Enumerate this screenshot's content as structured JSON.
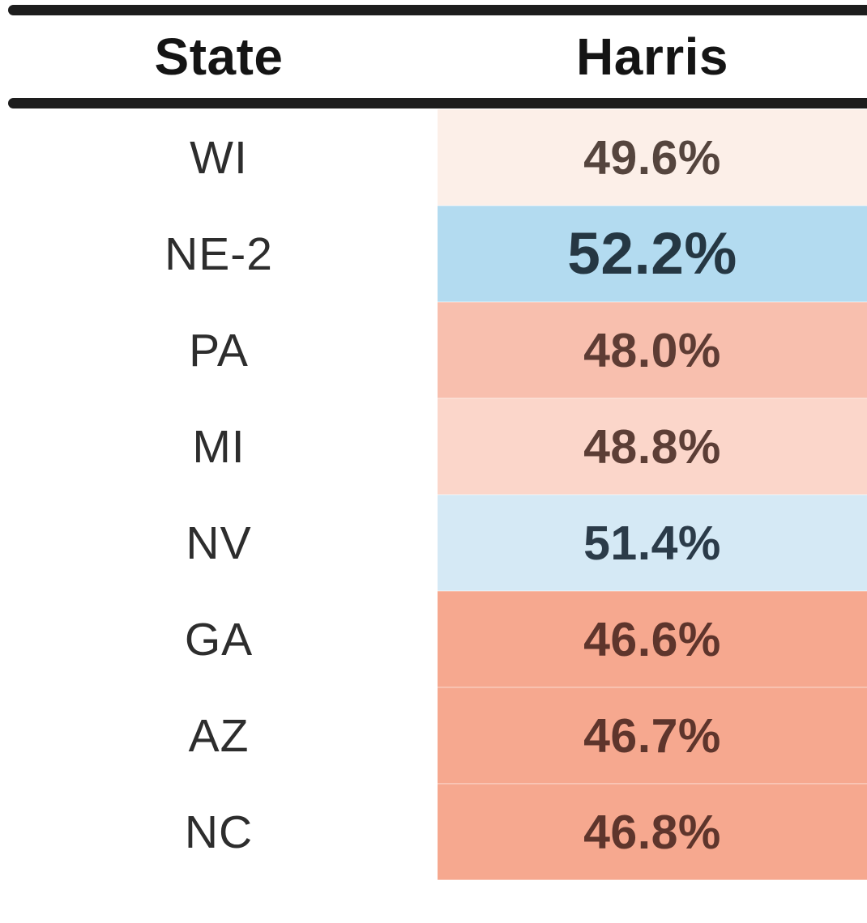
{
  "table": {
    "columns": [
      {
        "label": "State"
      },
      {
        "label": "Harris"
      }
    ],
    "rows": [
      {
        "state": "WI",
        "harris": "49.6%",
        "bg": "#fcefe8",
        "fg": "#55453e",
        "emphasis": false
      },
      {
        "state": "NE-2",
        "harris": "52.2%",
        "bg": "#b3dbf0",
        "fg": "#253743",
        "emphasis": true
      },
      {
        "state": "PA",
        "harris": "48.0%",
        "bg": "#f8bfae",
        "fg": "#5e3c34",
        "emphasis": false
      },
      {
        "state": "MI",
        "harris": "48.8%",
        "bg": "#fbd6ca",
        "fg": "#5c3e36",
        "emphasis": false
      },
      {
        "state": "NV",
        "harris": "51.4%",
        "bg": "#d5e9f5",
        "fg": "#2b3b49",
        "emphasis": false
      },
      {
        "state": "GA",
        "harris": "46.6%",
        "bg": "#f6a88f",
        "fg": "#5e352c",
        "emphasis": false
      },
      {
        "state": "AZ",
        "harris": "46.7%",
        "bg": "#f6a88f",
        "fg": "#5e352c",
        "emphasis": false
      },
      {
        "state": "NC",
        "harris": "46.8%",
        "bg": "#f6a88f",
        "fg": "#5e352c",
        "emphasis": false
      }
    ],
    "colors": {
      "rule": "#1d1d1d",
      "header_text": "#141414",
      "state_text": "#2d2d2d",
      "dem_strong": "#b3dbf0",
      "dem_light": "#d5e9f5",
      "rep_strong": "#f6a88f",
      "rep_light": "#fbd6ca"
    }
  }
}
